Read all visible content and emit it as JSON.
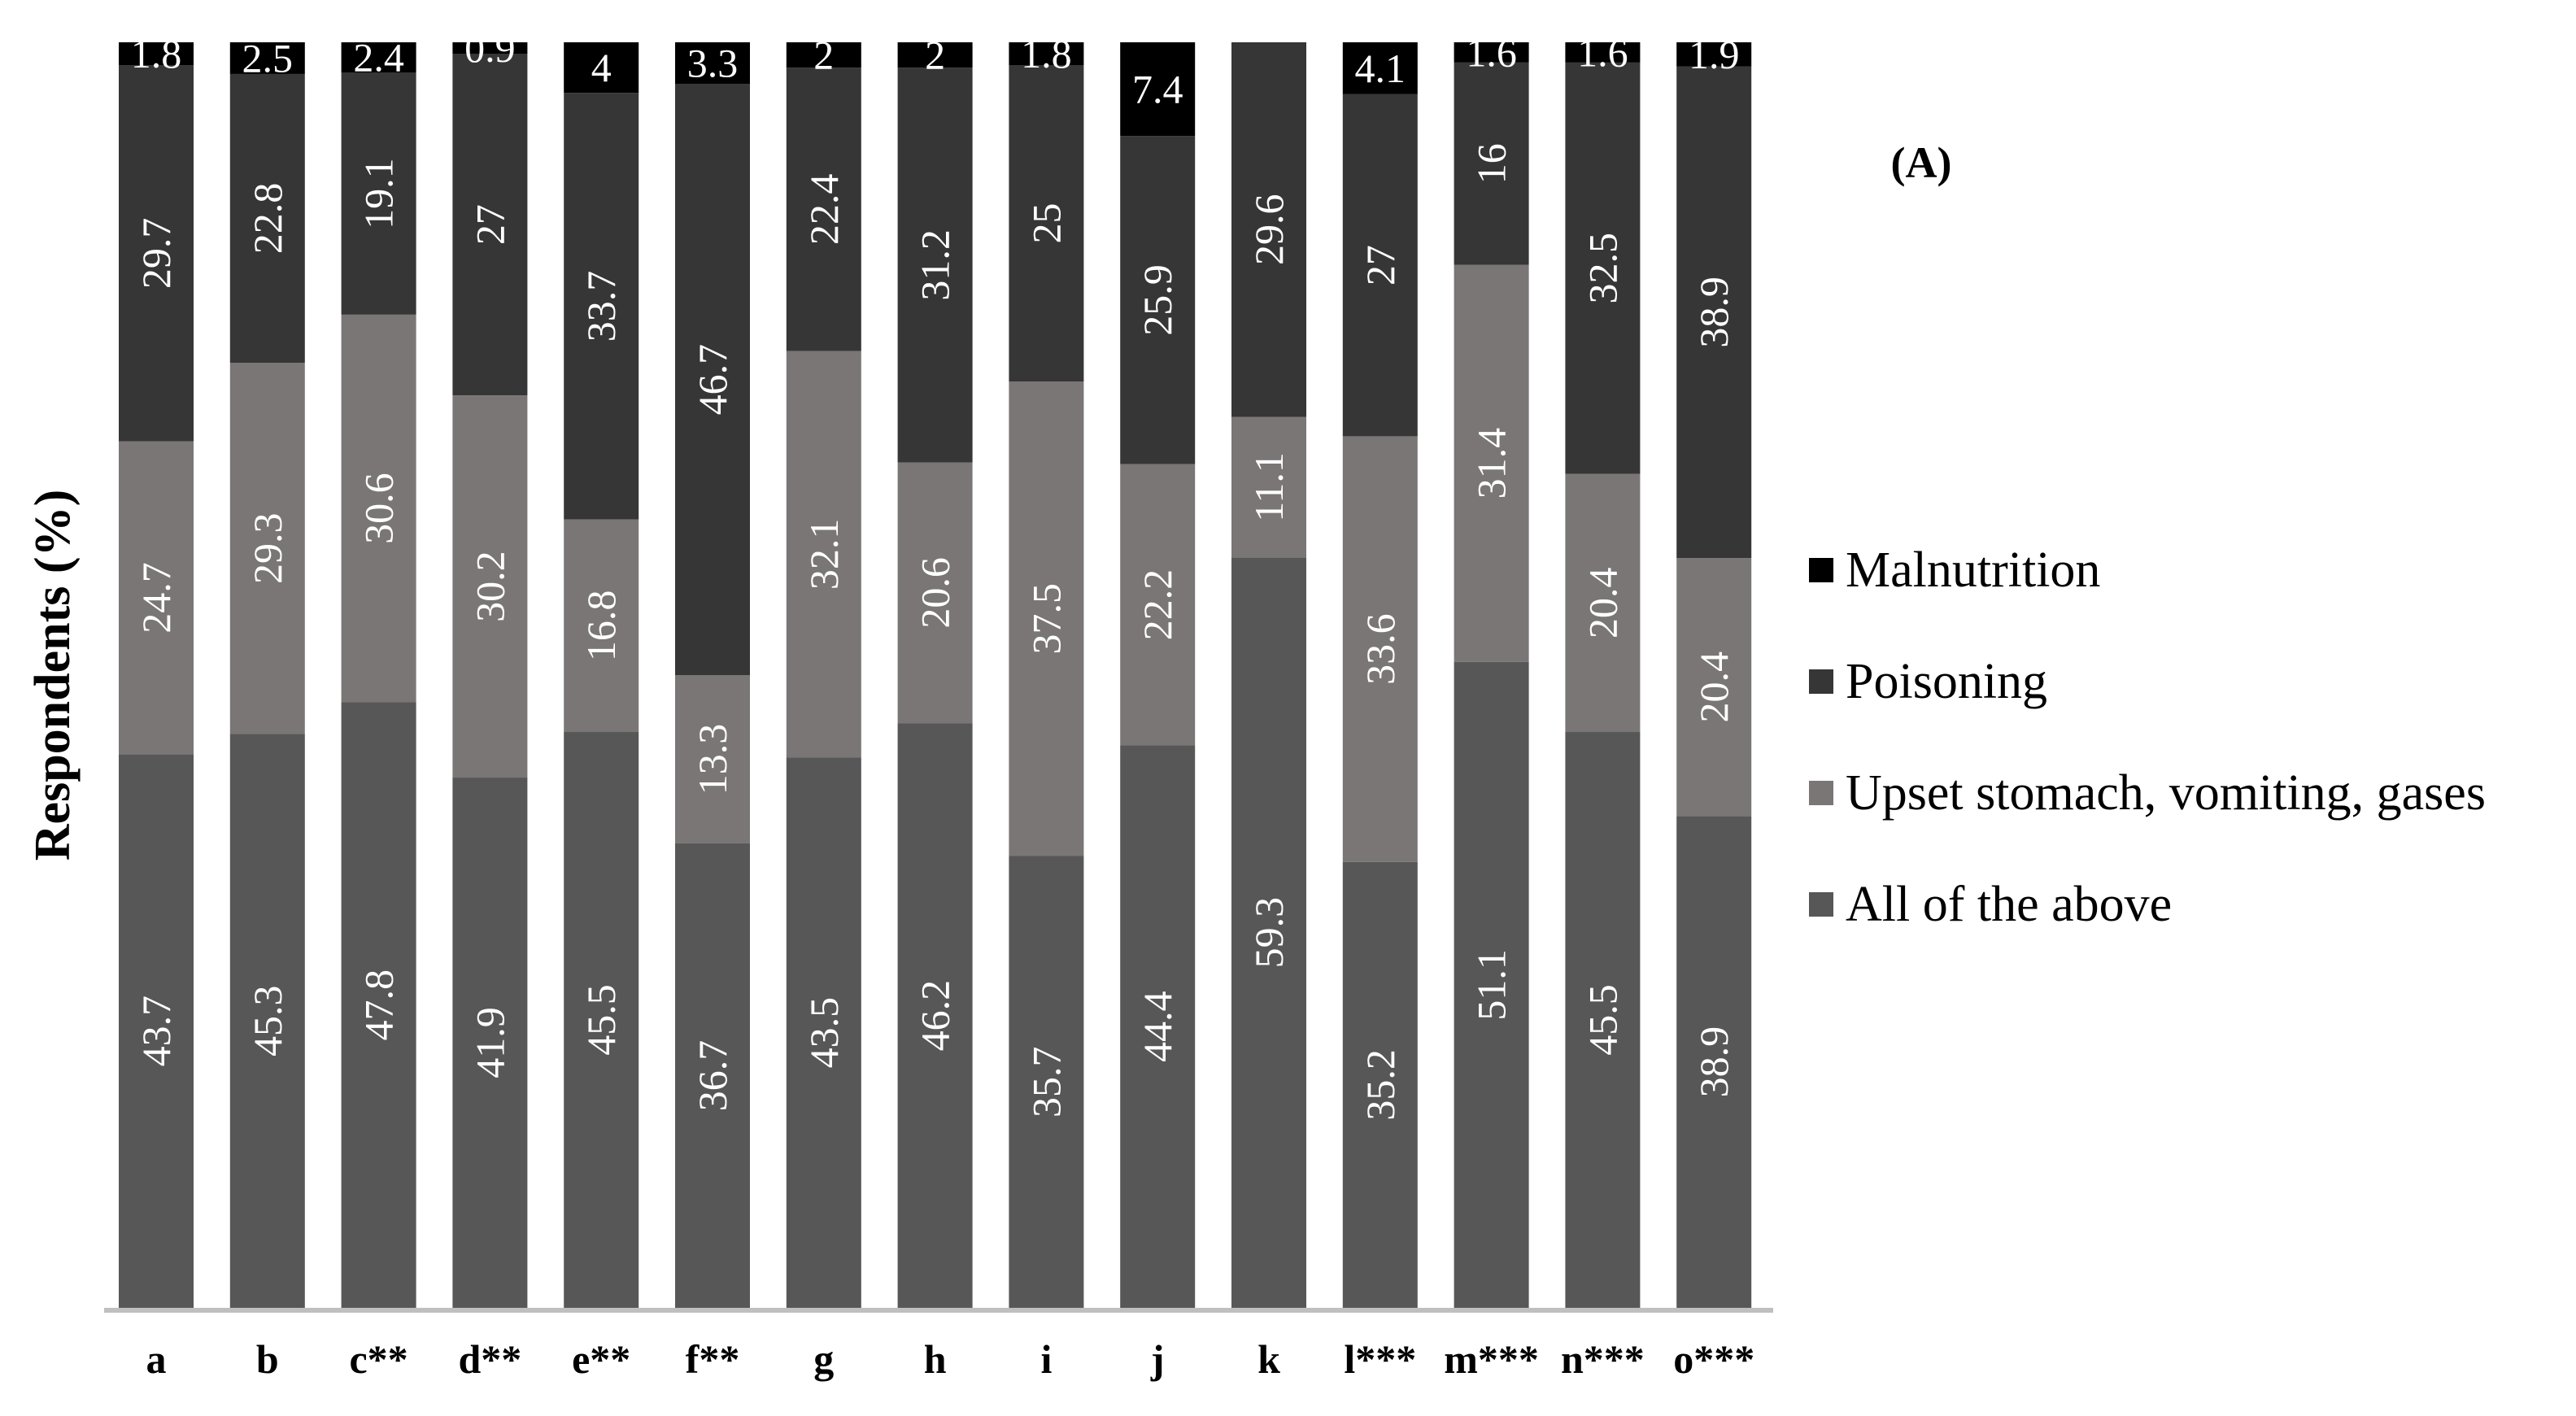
{
  "chart_data": {
    "type": "bar",
    "stacked": true,
    "orientation": "vertical",
    "title": "",
    "panel_label": "(A)",
    "xlabel": "",
    "ylabel": "Respondents (%)",
    "ylim": [
      0,
      100
    ],
    "grid": false,
    "legend_position": "right",
    "categories": [
      "a",
      "b",
      "c**",
      "d**",
      "e**",
      "f**",
      "g",
      "h",
      "i",
      "j",
      "k",
      "l***",
      "m***",
      "n***",
      "o***"
    ],
    "series": [
      {
        "name": "All of the above",
        "color": "#575757",
        "values": [
          43.7,
          45.3,
          47.8,
          41.9,
          45.5,
          36.7,
          43.5,
          46.2,
          35.7,
          44.4,
          59.3,
          35.2,
          51.1,
          45.5,
          38.9
        ],
        "labels": [
          "43.7",
          "45.3",
          "47.8",
          "41.9",
          "45.5",
          "36.7",
          "43.5",
          "46.2",
          "35.7",
          "44.4",
          "59.3",
          "35.2",
          "51.1",
          "45.5",
          "38.9"
        ]
      },
      {
        "name": "Upset stomach, vomiting, gases",
        "color": "#7a7676",
        "values": [
          24.7,
          29.3,
          30.6,
          30.2,
          16.8,
          13.3,
          32.1,
          20.6,
          37.5,
          22.2,
          11.1,
          33.6,
          31.4,
          20.4,
          20.4
        ],
        "labels": [
          "24.7",
          "29.3",
          "30.6",
          "30.2",
          "16.8",
          "13.3",
          "32.1",
          "20.6",
          "37.5",
          "22.2",
          "11.1",
          "33.6",
          "31.4",
          "20.4",
          "20.4"
        ]
      },
      {
        "name": "Poisoning",
        "color": "#363636",
        "values": [
          29.7,
          22.8,
          19.1,
          27,
          33.7,
          46.7,
          22.4,
          31.2,
          25,
          25.9,
          29.6,
          27,
          16,
          32.5,
          38.9
        ],
        "labels": [
          "29.7",
          "22.8",
          "19.1",
          "27",
          "33.7",
          "46.7",
          "22.4",
          "31.2",
          "25",
          "25.9",
          "29.6",
          "27",
          "16",
          "32.5",
          "38.9"
        ]
      },
      {
        "name": "Malnutrition",
        "color": "#000000",
        "values": [
          1.8,
          2.5,
          2.4,
          0.9,
          4,
          3.3,
          2,
          2,
          1.8,
          7.4,
          0,
          4.1,
          1.6,
          1.6,
          1.9
        ],
        "labels": [
          "1.8",
          "2.5",
          "2.4",
          "0.9",
          "4",
          "3.3",
          "2",
          "2",
          "1.8",
          "7.4",
          "",
          "4.1",
          "1.6",
          "1.6",
          "1.9"
        ]
      }
    ],
    "legend_order": [
      "Malnutrition",
      "Poisoning",
      "Upset stomach, vomiting, gases",
      "All of the above"
    ],
    "axis_color": "#bfbfbf"
  }
}
